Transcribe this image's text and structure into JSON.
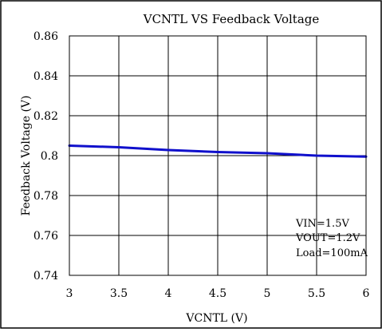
{
  "chart_data": {
    "type": "line",
    "title": "VCNTL VS Feedback Voltage",
    "xlabel": "VCNTL (V)",
    "ylabel": "Feedback Voltage (V)",
    "xlim": [
      3,
      6
    ],
    "ylim": [
      0.74,
      0.86
    ],
    "x_ticks": [
      3,
      3.5,
      4,
      4.5,
      5,
      5.5,
      6
    ],
    "x_tick_labels": [
      "3",
      "3.5",
      "4",
      "4.5",
      "5",
      "5.5",
      "6"
    ],
    "y_ticks": [
      0.74,
      0.76,
      0.78,
      0.8,
      0.82,
      0.84,
      0.86
    ],
    "y_tick_labels": [
      "0.74",
      "0.76",
      "0.78",
      "0.8",
      "0.82",
      "0.84",
      "0.86"
    ],
    "grid": true,
    "series": [
      {
        "color": "#1010cc",
        "x": [
          3,
          3.5,
          4,
          4.5,
          5,
          5.5,
          6
        ],
        "y": [
          0.805,
          0.8042,
          0.8028,
          0.8018,
          0.8012,
          0.8,
          0.7995
        ]
      }
    ],
    "annotations": [
      "VIN=1.5V",
      "VOUT=1.2V",
      "Load=100mA"
    ]
  }
}
